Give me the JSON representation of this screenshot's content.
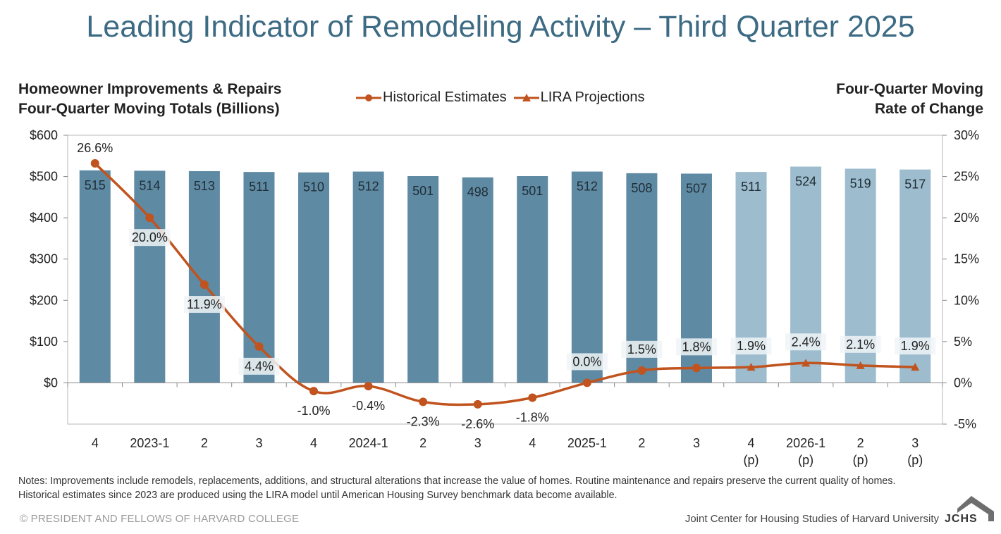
{
  "title": "Leading Indicator of Remodeling Activity – Third Quarter 2025",
  "left_axis_title_line1": "Homeowner Improvements & Repairs",
  "left_axis_title_line2": "Four-Quarter Moving Totals (Billions)",
  "right_axis_title_line1": "Four-Quarter Moving",
  "right_axis_title_line2": "Rate of Change",
  "legend": {
    "historical": "Historical Estimates",
    "projections": "LIRA Projections"
  },
  "colors": {
    "title": "#3d6b84",
    "bar_historical": "#5f8aa3",
    "bar_projection": "#9dbccd",
    "line": "#c0531e"
  },
  "notes": "Notes: Improvements include remodels, replacements, additions, and structural alterations that increase the value of homes. Routine maintenance and repairs preserve the current quality of homes. Historical estimates since 2023 are produced using the LIRA model until American Housing Survey benchmark data become available.",
  "copyright": "© PRESIDENT AND FELLOWS OF HARVARD COLLEGE",
  "footer_right": "Joint Center for Housing Studies of Harvard University",
  "logo_text": "JCHS",
  "chart_data": {
    "type": "bar",
    "categories": [
      [
        "4"
      ],
      [
        "2023-1"
      ],
      [
        "2"
      ],
      [
        "3"
      ],
      [
        "4"
      ],
      [
        "2024-1"
      ],
      [
        "2"
      ],
      [
        "3"
      ],
      [
        "4"
      ],
      [
        "2025-1"
      ],
      [
        "2"
      ],
      [
        "3"
      ],
      [
        "4",
        "(p)"
      ],
      [
        "2026-1",
        "(p)"
      ],
      [
        "2",
        "(p)"
      ],
      [
        "3",
        "(p)"
      ]
    ],
    "series": [
      {
        "name": "Homeowner Improvements & Repairs",
        "axis": "left",
        "values": [
          515,
          514,
          513,
          511,
          510,
          512,
          501,
          498,
          501,
          512,
          508,
          507,
          511,
          524,
          519,
          517
        ]
      },
      {
        "name": "Four-Quarter Moving Rate of Change",
        "axis": "right",
        "type": "line",
        "values": [
          26.6,
          20.0,
          11.9,
          4.4,
          -1.0,
          -0.4,
          -2.3,
          -2.6,
          -1.8,
          0.0,
          1.5,
          1.8,
          1.9,
          2.4,
          2.1,
          1.9
        ],
        "labels": [
          "26.6%",
          "20.0%",
          "11.9%",
          "4.4%",
          "-1.0%",
          "-0.4%",
          "-2.3%",
          "-2.6%",
          "-1.8%",
          "0.0%",
          "1.5%",
          "1.8%",
          "1.9%",
          "2.4%",
          "2.1%",
          "1.9%"
        ]
      }
    ],
    "projection_start_index": 12,
    "ylim_left": [
      -100,
      600
    ],
    "yticks_left": [
      "$600",
      "$500",
      "$400",
      "$300",
      "$200",
      "$100",
      "$0"
    ],
    "ytick_values_left": [
      600,
      500,
      400,
      300,
      200,
      100,
      0
    ],
    "ylim_right": [
      -5,
      30
    ],
    "yticks_right": [
      "30%",
      "25%",
      "20%",
      "15%",
      "10%",
      "5%",
      "0%",
      "-5%"
    ],
    "ytick_values_right": [
      30,
      25,
      20,
      15,
      10,
      5,
      0,
      -5
    ],
    "grid": false,
    "legend_position": "top-center"
  }
}
